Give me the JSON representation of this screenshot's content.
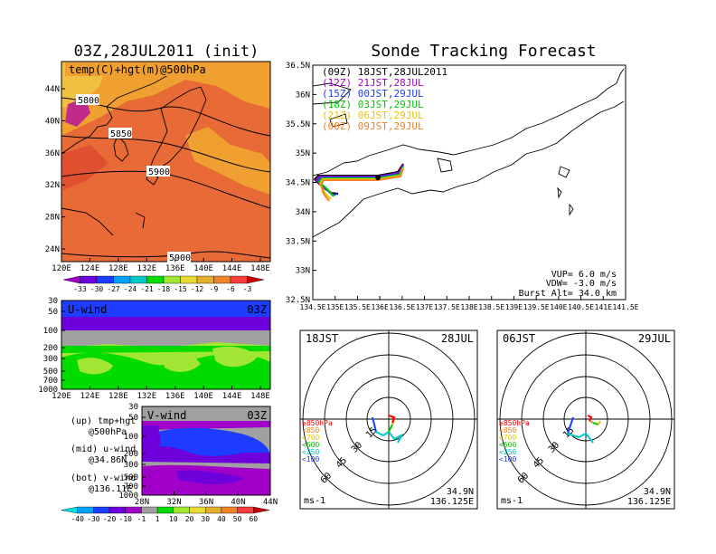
{
  "left_panel": {
    "title": "03Z,28JUL2011 (init)",
    "map_label": "temp(C)+hgt(m)@500hPa",
    "lat_ticks": [
      "44N",
      "40N",
      "36N",
      "32N",
      "28N",
      "24N"
    ],
    "lon_ticks": [
      "120E",
      "124E",
      "128E",
      "132E",
      "136E",
      "140E",
      "144E",
      "148E"
    ],
    "contour_labels": [
      "5800",
      "5850",
      "5900",
      "5900"
    ],
    "temp_colorbar": {
      "labels": [
        "-33",
        "-30",
        "-27",
        "-24",
        "-21",
        "-18",
        "-15",
        "-12",
        "-9",
        "-6",
        "-3"
      ],
      "colors": [
        "#a000c8",
        "#6e00dc",
        "#1e3cff",
        "#00a0ff",
        "#00c8c8",
        "#00dc00",
        "#a0e632",
        "#e6dc32",
        "#e6af2d",
        "#f08228",
        "#fa3c3c",
        "#c80000"
      ]
    }
  },
  "uwind": {
    "label": "U-wind",
    "time": "03Z",
    "p_ticks": [
      "30",
      "50",
      "100",
      "200",
      "300",
      "500",
      "700",
      "1000"
    ],
    "lon_ticks": [
      "120E",
      "124E",
      "128E",
      "132E",
      "136E",
      "140E",
      "144E",
      "148E"
    ]
  },
  "vwind": {
    "label": "V-wind",
    "time": "03Z",
    "p_ticks": [
      "30",
      "50",
      "100",
      "200",
      "300",
      "500",
      "700",
      "1000"
    ],
    "lat_ticks": [
      "28N",
      "32N",
      "36N",
      "40N",
      "44N"
    ]
  },
  "legend_notes": {
    "up": "(up) tmp+hgt",
    "up2": "@500hPa",
    "mid": "(mid) u-wind",
    "mid2": "@34.86N",
    "bot": "(bot) v-wind",
    "bot2": "@136.11E"
  },
  "wind_colorbar": {
    "labels": [
      "-40",
      "-30",
      "-20",
      "-10",
      "-1",
      "1",
      "10",
      "20",
      "30",
      "40",
      "50",
      "60"
    ],
    "colors": [
      "#00e6e6",
      "#00a0ff",
      "#1e3cff",
      "#6e00dc",
      "#a000c8",
      "#a0a0a0",
      "#00dc00",
      "#a0e632",
      "#e6dc32",
      "#e6af2d",
      "#f08228",
      "#fa3c3c",
      "#c80000"
    ]
  },
  "sonde": {
    "title": "Sonde Tracking Forecast",
    "lat_ticks": [
      "36.5N",
      "36N",
      "35.5N",
      "35N",
      "34.5N",
      "34N",
      "33.5N",
      "33N",
      "32.5N"
    ],
    "lon_ticks": [
      "134.5E",
      "135E",
      "135.5E",
      "136E",
      "136.5E",
      "137E",
      "137.5E",
      "138E",
      "138.5E",
      "139E",
      "139.5E",
      "140E",
      "140.5E",
      "141E",
      "141.5E"
    ],
    "launches": [
      {
        "label": "(09Z)  18JST,28JUL2011",
        "color": "#000000"
      },
      {
        "label": "(12Z)  21JST,28JUL",
        "color": "#a000c8"
      },
      {
        "label": "(15Z)  00JST,29JUL",
        "color": "#1e3cff"
      },
      {
        "label": "(18Z)  03JST,29JUL",
        "color": "#00c800"
      },
      {
        "label": "(21Z)  06JST,29JUL",
        "color": "#e6c800"
      },
      {
        "label": "(00Z)  09JST,29JUL",
        "color": "#f08228"
      }
    ],
    "vup": "VUP= 6.0 m/s",
    "vdw": "VDW= -3.0 m/s",
    "burst": "Burst Alt= 34.0 km"
  },
  "polar_left": {
    "time": "18JST",
    "date": "28JUL",
    "unit": "ms-1",
    "lat": "34.9N",
    "lon": "136.125E",
    "ring_labels": [
      "15",
      "30",
      "45",
      "60"
    ]
  },
  "polar_right": {
    "time": "06JST",
    "date": "29JUL",
    "unit": "ms-1",
    "lat": "34.9N",
    "lon": "136.125E",
    "ring_labels": [
      "15",
      "30",
      "45",
      "60"
    ]
  },
  "polar_legend": [
    {
      "label": "≥850hPa",
      "color": "#fa0000"
    },
    {
      "label": "<850",
      "color": "#f08228"
    },
    {
      "label": "<700",
      "color": "#e6c800"
    },
    {
      "label": "<500",
      "color": "#00c800"
    },
    {
      "label": "<250",
      "color": "#00c8c8"
    },
    {
      "label": "<100",
      "color": "#1e3cff"
    }
  ],
  "chart_data": [
    {
      "type": "heatmap",
      "title": "03Z,28JUL2011 (init)",
      "variable": "temp(C)+hgt(m)@500hPa",
      "xlim": [
        "120E",
        "150E"
      ],
      "ylim": [
        "22N",
        "48N"
      ],
      "contours": [
        5800,
        5850,
        5900
      ]
    },
    {
      "type": "heatmap",
      "variable": "U-wind",
      "xlim": [
        "120E",
        "150E"
      ],
      "ylim": [
        1000,
        30
      ]
    },
    {
      "type": "heatmap",
      "variable": "V-wind",
      "xlim": [
        "28N",
        "44N"
      ],
      "ylim": [
        1000,
        30
      ]
    },
    {
      "type": "line",
      "title": "Sonde Tracking Forecast",
      "xlim": [
        "134.5E",
        "141.5E"
      ],
      "ylim": [
        "32.5N",
        "36.5N"
      ]
    },
    {
      "type": "line",
      "polar": true,
      "rings": [
        15,
        30,
        45,
        60
      ],
      "time": "18JST 28JUL"
    },
    {
      "type": "line",
      "polar": true,
      "rings": [
        15,
        30,
        45,
        60
      ],
      "time": "06JST 29JUL"
    }
  ]
}
